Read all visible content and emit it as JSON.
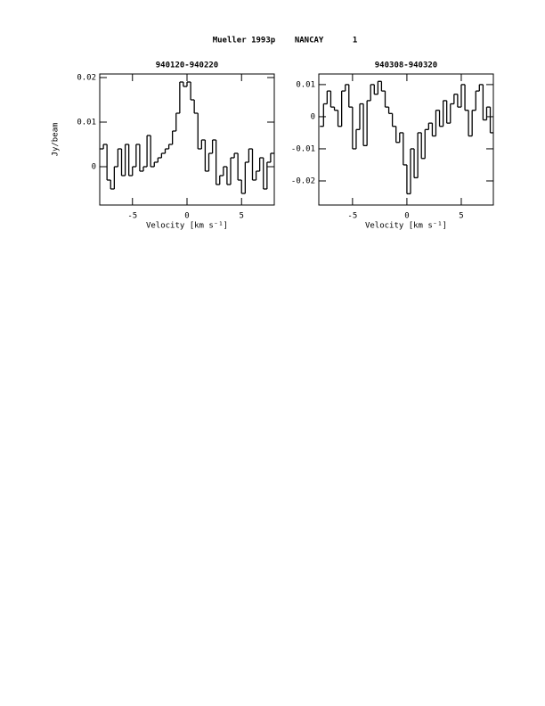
{
  "page_title": "Mueller 1993p    NANCAY      1",
  "chart_data": [
    {
      "type": "step",
      "title": "940120-940220",
      "xlabel": "Velocity [km s⁻¹]",
      "ylabel": "Jy/beam",
      "color": "#000000",
      "x": [
        -7.83,
        -7.5,
        -7.17,
        -6.83,
        -6.5,
        -6.17,
        -5.83,
        -5.5,
        -5.17,
        -4.83,
        -4.5,
        -4.17,
        -3.83,
        -3.5,
        -3.17,
        -2.83,
        -2.5,
        -2.17,
        -1.83,
        -1.5,
        -1.17,
        -0.83,
        -0.5,
        -0.17,
        0.17,
        0.5,
        0.83,
        1.17,
        1.5,
        1.83,
        2.17,
        2.5,
        2.83,
        3.17,
        3.5,
        3.83,
        4.17,
        4.5,
        4.83,
        5.17,
        5.5,
        5.83,
        6.17,
        6.5,
        6.83,
        7.17,
        7.5,
        7.83
      ],
      "values": [
        0.004,
        0.005,
        -0.003,
        -0.005,
        0.0,
        0.004,
        -0.002,
        0.005,
        -0.002,
        0.0,
        0.005,
        -0.001,
        0.0,
        0.007,
        0.0,
        0.001,
        0.002,
        0.003,
        0.004,
        0.005,
        0.008,
        0.012,
        0.019,
        0.018,
        0.019,
        0.015,
        0.012,
        0.004,
        0.006,
        -0.001,
        0.003,
        0.006,
        -0.004,
        -0.002,
        0.0,
        -0.004,
        0.002,
        0.003,
        -0.003,
        -0.006,
        0.001,
        0.004,
        -0.003,
        -0.001,
        0.002,
        -0.005,
        0.001,
        0.003
      ],
      "xlim": [
        -8,
        8
      ],
      "ylim": [
        -0.0086,
        0.0208
      ],
      "xticks": [
        -5,
        0,
        5
      ],
      "yticks": [
        0,
        0.01,
        0.02
      ]
    },
    {
      "type": "step",
      "title": "940308-940320",
      "xlabel": "Velocity [km s⁻¹]",
      "color": "#000000",
      "x": [
        -7.83,
        -7.5,
        -7.17,
        -6.83,
        -6.5,
        -6.17,
        -5.83,
        -5.5,
        -5.17,
        -4.83,
        -4.5,
        -4.17,
        -3.83,
        -3.5,
        -3.17,
        -2.83,
        -2.5,
        -2.17,
        -1.83,
        -1.5,
        -1.17,
        -0.83,
        -0.5,
        -0.17,
        0.17,
        0.5,
        0.83,
        1.17,
        1.5,
        1.83,
        2.17,
        2.5,
        2.83,
        3.17,
        3.5,
        3.83,
        4.17,
        4.5,
        4.83,
        5.17,
        5.5,
        5.83,
        6.17,
        6.5,
        6.83,
        7.17,
        7.5,
        7.83
      ],
      "values": [
        -0.003,
        0.004,
        0.008,
        0.003,
        0.002,
        -0.003,
        0.008,
        0.01,
        0.003,
        -0.01,
        -0.004,
        0.004,
        -0.009,
        0.005,
        0.01,
        0.007,
        0.011,
        0.008,
        0.003,
        0.001,
        -0.003,
        -0.008,
        -0.005,
        -0.015,
        -0.024,
        -0.01,
        -0.019,
        -0.005,
        -0.013,
        -0.004,
        -0.002,
        -0.006,
        0.002,
        -0.003,
        0.005,
        -0.002,
        0.004,
        0.007,
        0.003,
        0.01,
        0.002,
        -0.006,
        0.002,
        0.008,
        0.01,
        -0.001,
        0.003,
        -0.005
      ],
      "xlim": [
        -8.1,
        7.95
      ],
      "ylim": [
        -0.0275,
        0.0133
      ],
      "xticks": [
        -5,
        0,
        5
      ],
      "yticks": [
        -0.02,
        -0.01,
        0,
        0.01
      ]
    }
  ]
}
